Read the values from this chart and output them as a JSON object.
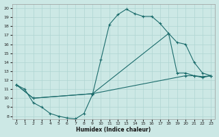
{
  "xlabel": "Humidex (Indice chaleur)",
  "bg_color": "#cce8e5",
  "line_color": "#1a6b6b",
  "grid_color": "#aed5d2",
  "xlim_min": -0.5,
  "xlim_max": 23.5,
  "ylim_min": 7.7,
  "ylim_max": 20.5,
  "xticks": [
    0,
    1,
    2,
    3,
    4,
    5,
    6,
    7,
    8,
    9,
    10,
    11,
    12,
    13,
    14,
    15,
    16,
    17,
    18,
    19,
    20,
    21,
    22,
    23
  ],
  "yticks": [
    8,
    9,
    10,
    11,
    12,
    13,
    14,
    15,
    16,
    17,
    18,
    19,
    20
  ],
  "line1_x": [
    0,
    1,
    2,
    3,
    4,
    5,
    6,
    7,
    8,
    9,
    10,
    11,
    12,
    13,
    14,
    15,
    16,
    17,
    18,
    19,
    20,
    21,
    22,
    23
  ],
  "line1_y": [
    11.5,
    11.0,
    9.5,
    9.0,
    8.3,
    8.0,
    7.8,
    7.7,
    8.3,
    10.4,
    14.3,
    18.2,
    19.3,
    19.9,
    19.4,
    19.1,
    19.1,
    18.3,
    17.2,
    12.8,
    12.8,
    12.5,
    12.3,
    12.5
  ],
  "line2_x": [
    0,
    2,
    9,
    18,
    19,
    20,
    21,
    22,
    23
  ],
  "line2_y": [
    11.5,
    10.0,
    10.5,
    17.2,
    16.2,
    16.0,
    14.0,
    12.8,
    12.5
  ],
  "line3_x": [
    0,
    2,
    9,
    20,
    21,
    22,
    23
  ],
  "line3_y": [
    11.5,
    10.0,
    10.5,
    12.5,
    12.5,
    12.4,
    12.5
  ]
}
